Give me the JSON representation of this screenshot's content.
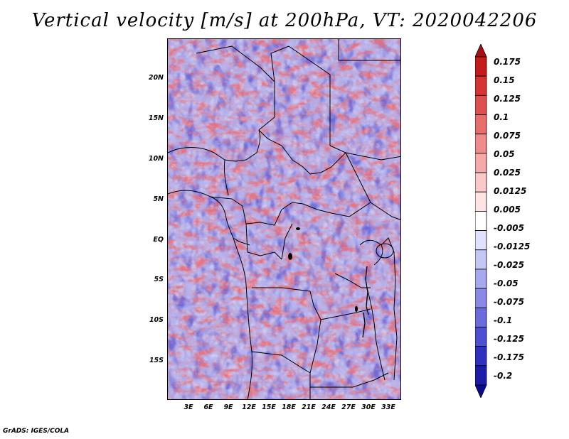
{
  "title": "Vertical velocity [m/s] at 200hPa, VT: 2020042206",
  "latitude_labels": [
    "20N",
    "15N",
    "10N",
    "5N",
    "EQ",
    "5S",
    "10S",
    "15S"
  ],
  "longitude_labels": [
    "3E",
    "6E",
    "9E",
    "12E",
    "15E",
    "18E",
    "21E",
    "24E",
    "27E",
    "30E",
    "33E"
  ],
  "colorbar": {
    "labels": [
      "0.175",
      "0.15",
      "0.125",
      "0.1",
      "0.075",
      "0.05",
      "0.025",
      "0.0125",
      "0.005",
      "-0.005",
      "-0.0125",
      "-0.025",
      "-0.05",
      "-0.075",
      "-0.1",
      "-0.125",
      "-0.175",
      "-0.2"
    ],
    "colors": [
      "#a50f15",
      "#c41a1a",
      "#d63333",
      "#e04f4f",
      "#e86e6e",
      "#f08b8b",
      "#f5a9a9",
      "#f9c8c8",
      "#fde3e3",
      "#ffffff",
      "#e0e0ff",
      "#c6c6f5",
      "#a8a8ee",
      "#8a8ae6",
      "#6b6bdc",
      "#4e4ed2",
      "#3030c0",
      "#1c1ca8",
      "#0b0b8c"
    ]
  },
  "footer": "GrADS: IGES/COLA"
}
